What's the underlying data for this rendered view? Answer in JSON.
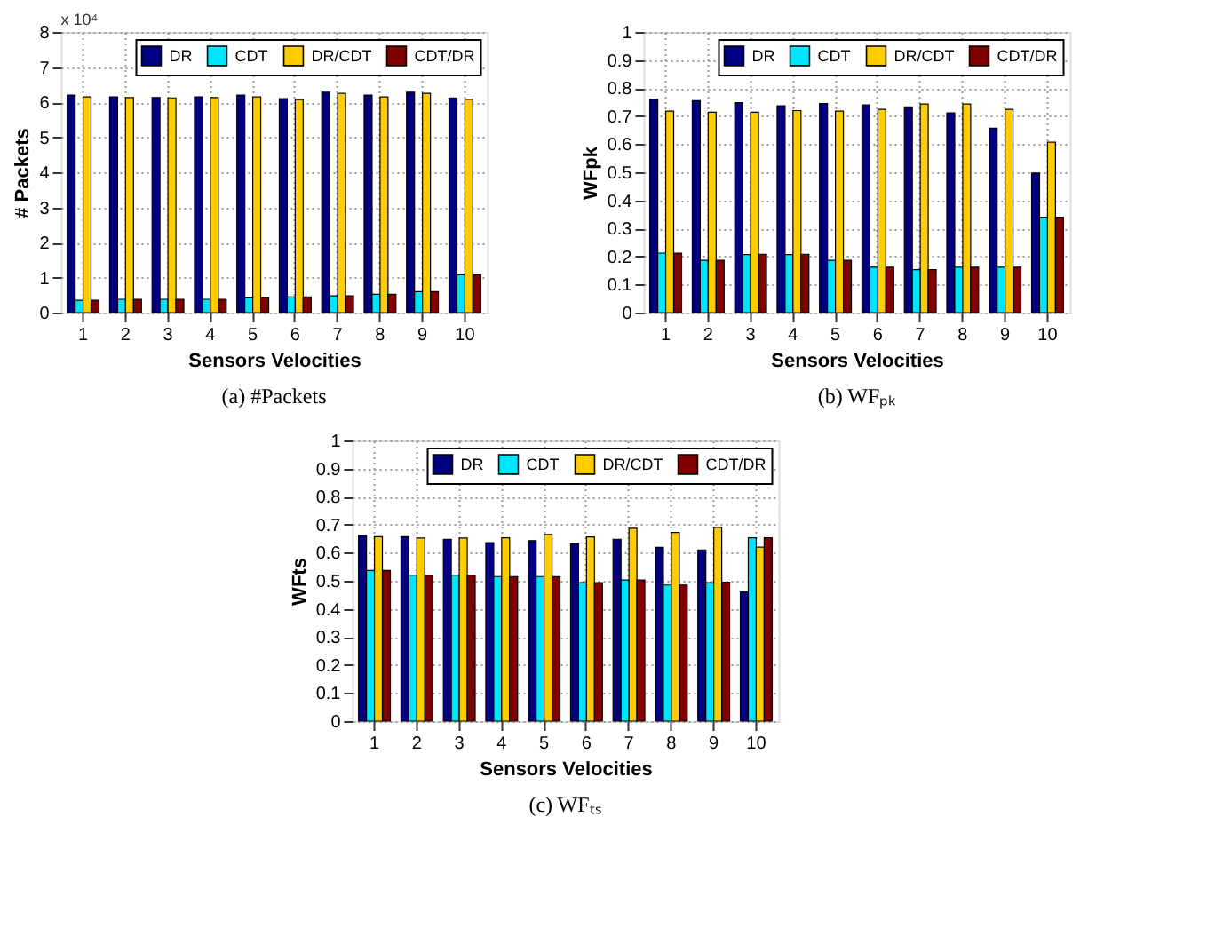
{
  "chart_data": [
    {
      "type": "bar",
      "title": "(a)  #Packets",
      "xlabel": "Sensors Velocities",
      "ylabel": "# Packets",
      "annotations": [
        "x 10⁴"
      ],
      "categories": [
        "1",
        "2",
        "3",
        "4",
        "5",
        "6",
        "7",
        "8",
        "9",
        "10"
      ],
      "ylim": [
        0,
        8
      ],
      "yticks": [
        0,
        1,
        2,
        3,
        4,
        5,
        6,
        7,
        8
      ],
      "grid": true,
      "legend": "top right",
      "series": [
        {
          "name": "DR",
          "color": "#000080",
          "values": [
            6.2,
            6.15,
            6.13,
            6.15,
            6.2,
            6.1,
            6.28,
            6.2,
            6.28,
            6.12
          ]
        },
        {
          "name": "CDT",
          "color": "#00e5ff",
          "values": [
            0.35,
            0.38,
            0.38,
            0.38,
            0.42,
            0.45,
            0.48,
            0.52,
            0.6,
            1.08
          ]
        },
        {
          "name": "DR/CDT",
          "color": "#ffcc00",
          "values": [
            6.15,
            6.13,
            6.12,
            6.13,
            6.15,
            6.07,
            6.25,
            6.15,
            6.25,
            6.08
          ]
        },
        {
          "name": "CDT/DR",
          "color": "#800000",
          "values": [
            0.35,
            0.38,
            0.38,
            0.38,
            0.42,
            0.45,
            0.48,
            0.52,
            0.6,
            1.08
          ]
        }
      ]
    },
    {
      "type": "bar",
      "title": "(b)  WFₚₖ",
      "xlabel": "Sensors Velocities",
      "ylabel": "WFpk",
      "categories": [
        "1",
        "2",
        "3",
        "4",
        "5",
        "6",
        "7",
        "8",
        "9",
        "10"
      ],
      "ylim": [
        0,
        1
      ],
      "yticks": [
        0,
        0.1,
        0.2,
        0.3,
        0.4,
        0.5,
        0.6,
        0.7,
        0.8,
        0.9,
        1
      ],
      "grid": true,
      "legend": "top right",
      "series": [
        {
          "name": "DR",
          "color": "#000080",
          "values": [
            0.76,
            0.755,
            0.748,
            0.737,
            0.745,
            0.74,
            0.733,
            0.712,
            0.657,
            0.497
          ]
        },
        {
          "name": "CDT",
          "color": "#00e5ff",
          "values": [
            0.212,
            0.186,
            0.207,
            0.207,
            0.186,
            0.162,
            0.153,
            0.162,
            0.162,
            0.34
          ]
        },
        {
          "name": "DR/CDT",
          "color": "#ffcc00",
          "values": [
            0.718,
            0.714,
            0.714,
            0.72,
            0.718,
            0.724,
            0.743,
            0.743,
            0.724,
            0.607
          ]
        },
        {
          "name": "CDT/DR",
          "color": "#800000",
          "values": [
            0.212,
            0.186,
            0.208,
            0.208,
            0.186,
            0.162,
            0.153,
            0.162,
            0.162,
            0.34
          ]
        }
      ]
    },
    {
      "type": "bar",
      "title": "(c)  WFₜₛ",
      "xlabel": "Sensors Velocities",
      "ylabel": "WFts",
      "categories": [
        "1",
        "2",
        "3",
        "4",
        "5",
        "6",
        "7",
        "8",
        "9",
        "10"
      ],
      "ylim": [
        0,
        1
      ],
      "yticks": [
        0,
        0.1,
        0.2,
        0.3,
        0.4,
        0.5,
        0.6,
        0.7,
        0.8,
        0.9,
        1
      ],
      "grid": true,
      "legend": "top right",
      "series": [
        {
          "name": "DR",
          "color": "#000080",
          "values": [
            0.662,
            0.657,
            0.648,
            0.636,
            0.643,
            0.632,
            0.648,
            0.619,
            0.61,
            0.46
          ]
        },
        {
          "name": "CDT",
          "color": "#00e5ff",
          "values": [
            0.537,
            0.52,
            0.52,
            0.515,
            0.515,
            0.493,
            0.503,
            0.485,
            0.493,
            0.653
          ]
        },
        {
          "name": "DR/CDT",
          "color": "#ffcc00",
          "values": [
            0.657,
            0.652,
            0.652,
            0.653,
            0.665,
            0.656,
            0.687,
            0.672,
            0.69,
            0.62
          ]
        },
        {
          "name": "CDT/DR",
          "color": "#800000",
          "values": [
            0.537,
            0.52,
            0.52,
            0.515,
            0.515,
            0.493,
            0.503,
            0.485,
            0.495,
            0.653
          ]
        }
      ]
    }
  ]
}
